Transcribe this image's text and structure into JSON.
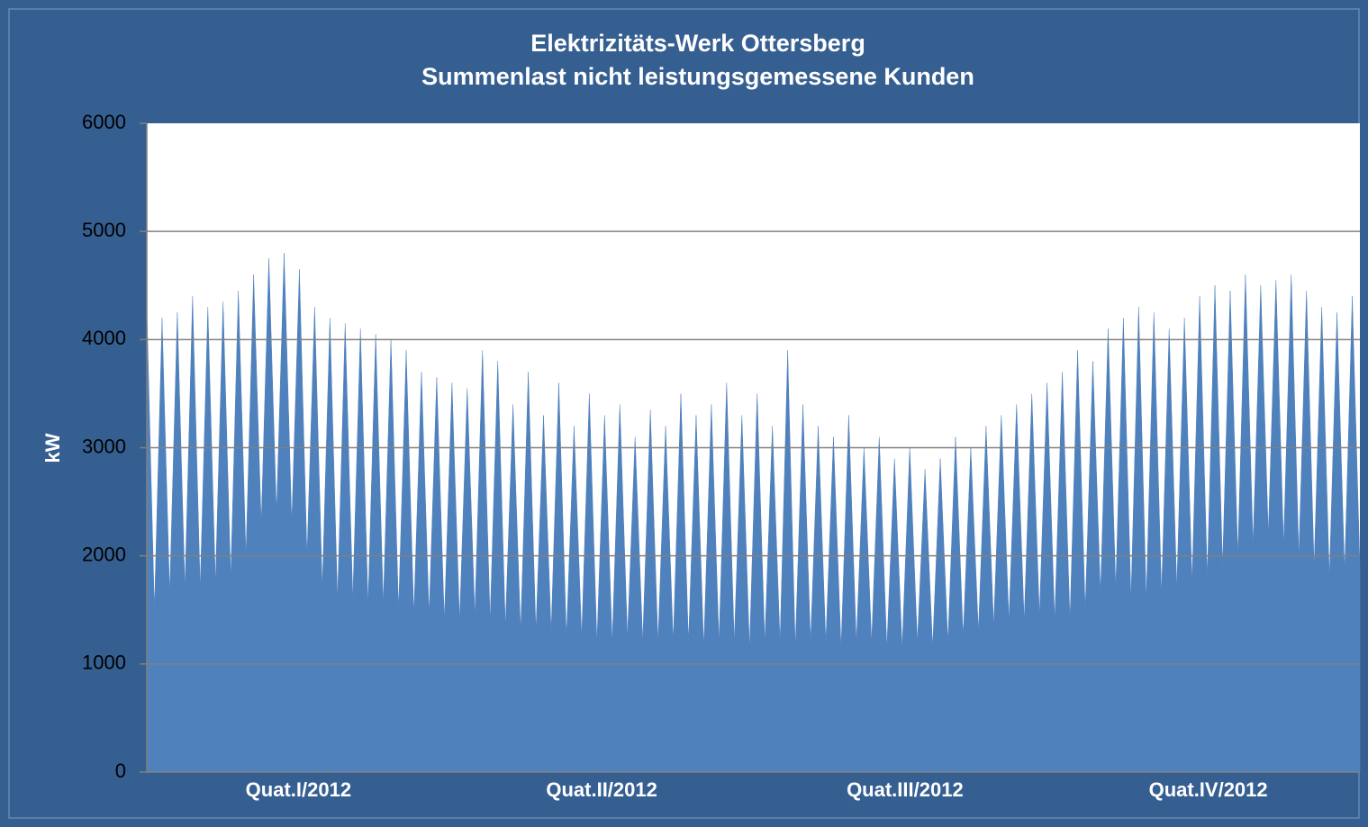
{
  "chart_data": {
    "type": "area",
    "title": "Elektrizitäts-Werk Ottersberg",
    "subtitle": "Summenlast nicht leistungsgemessene Kunden",
    "y_label": "kW",
    "x_labels": [
      "Quat.I/2012",
      "Quat.II/2012",
      "Quat.III/2012",
      "Quat.IV/2012"
    ],
    "color": "#4f81bd",
    "ylim": [
      0,
      6000
    ],
    "yticks": [
      0,
      1000,
      2000,
      3000,
      4000,
      5000,
      6000
    ],
    "grid": true,
    "values": [
      4300,
      1500,
      4200,
      1650,
      4250,
      1700,
      4400,
      1700,
      4300,
      1750,
      4350,
      1800,
      4450,
      2000,
      4600,
      2300,
      4750,
      2400,
      4800,
      2300,
      4650,
      2000,
      4300,
      1700,
      4200,
      1600,
      4150,
      1600,
      4100,
      1550,
      4050,
      1550,
      4000,
      1500,
      3900,
      1450,
      3700,
      1450,
      3650,
      1400,
      3600,
      1400,
      3550,
      1450,
      3900,
      1400,
      3800,
      1350,
      3400,
      1300,
      3700,
      1300,
      3300,
      1300,
      3600,
      1250,
      3200,
      1250,
      3500,
      1200,
      3300,
      1200,
      3400,
      1250,
      3100,
      1200,
      3350,
      1200,
      3200,
      1200,
      3500,
      1200,
      3300,
      1150,
      3400,
      1200,
      3600,
      1200,
      3300,
      1150,
      3500,
      1200,
      3200,
      1200,
      3900,
      1150,
      3400,
      1200,
      3200,
      1200,
      3100,
      1150,
      3300,
      1200,
      3000,
      1200,
      3100,
      1150,
      2900,
      1150,
      3000,
      1200,
      2800,
      1150,
      2900,
      1200,
      3100,
      1250,
      3000,
      1300,
      3200,
      1350,
      3300,
      1400,
      3400,
      1400,
      3500,
      1450,
      3600,
      1400,
      3700,
      1400,
      3900,
      1500,
      3800,
      1650,
      4100,
      1700,
      4200,
      1600,
      4300,
      1600,
      4250,
      1650,
      4100,
      1700,
      4200,
      1750,
      4400,
      1800,
      4500,
      1900,
      4450,
      2000,
      4600,
      2100,
      4500,
      2200,
      4550,
      2100,
      4600,
      2000,
      4450,
      1900,
      4300,
      1800,
      4250,
      1850,
      4400,
      1900
    ]
  }
}
